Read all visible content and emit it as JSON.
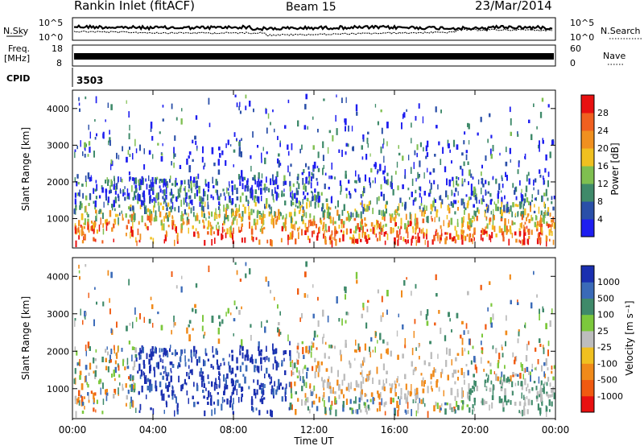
{
  "header": {
    "site": "Rankin Inlet (fitACF)",
    "beam": "Beam 15",
    "date": "23/Mar/2014"
  },
  "noise_panel": {
    "left_label": "N.Sky",
    "right_label": "N.Search",
    "tick_top": "10^5",
    "tick_bottom": "10^0"
  },
  "freq_panel": {
    "left_label_1": "Freq.",
    "left_label_2": "[MHz]",
    "right_label": "Nave",
    "left_ticks": [
      "18",
      "8"
    ],
    "right_ticks": [
      "60",
      "0"
    ]
  },
  "cpid": {
    "label": "CPID",
    "value": "3503"
  },
  "chart_data": [
    {
      "type": "heatmap",
      "name": "power",
      "ylabel": "Slant Range [km]",
      "ylim": [
        200,
        4500
      ],
      "yticks": [
        "1000",
        "2000",
        "3000",
        "4000"
      ],
      "colorbar_label": "Power [dB]",
      "colorbar_ticks": [
        "4",
        "8",
        "12",
        "16",
        "20",
        "24",
        "28"
      ],
      "colors": [
        "#1e1ef0",
        "#2a4fa8",
        "#3f8a6a",
        "#7fbf50",
        "#f0c020",
        "#f09020",
        "#f06020",
        "#e81010"
      ]
    },
    {
      "type": "heatmap",
      "name": "velocity",
      "ylabel": "Slant Range [km]",
      "ylim": [
        200,
        4500
      ],
      "yticks": [
        "1000",
        "2000",
        "3000",
        "4000"
      ],
      "colorbar_label": "Velocity [m s⁻¹]",
      "colorbar_ticks": [
        "1000",
        "500",
        "100",
        "25",
        "-25",
        "-100",
        "-500",
        "-1000"
      ],
      "colors": [
        "#1a2fb0",
        "#3a6ab8",
        "#3f8a6a",
        "#7cc83c",
        "#bdbdbd",
        "#f0c020",
        "#f08a1a",
        "#f05a10",
        "#e81010"
      ]
    }
  ],
  "time_axis": {
    "label": "Time UT",
    "ticks": [
      "00:00",
      "04:00",
      "08:00",
      "12:00",
      "16:00",
      "20:00",
      "00:00"
    ]
  }
}
